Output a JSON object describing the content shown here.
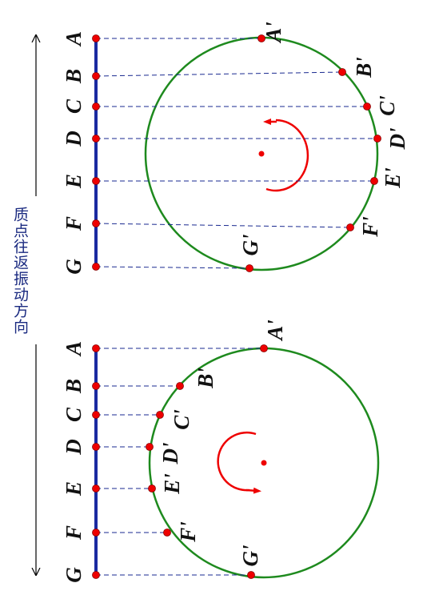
{
  "caption": "质点往返振动方向",
  "top": {
    "points": [
      "A",
      "B",
      "C",
      "D",
      "E",
      "F",
      "G"
    ],
    "circle_points": [
      "A'",
      "B'",
      "C'",
      "D'",
      "E'",
      "F'",
      "G'"
    ]
  },
  "bottom": {
    "points": [
      "A",
      "B",
      "C",
      "D",
      "E",
      "F",
      "G"
    ],
    "circle_points": [
      "A'",
      "B'",
      "C'",
      "D'",
      "E'",
      "F'",
      "G'"
    ]
  }
}
